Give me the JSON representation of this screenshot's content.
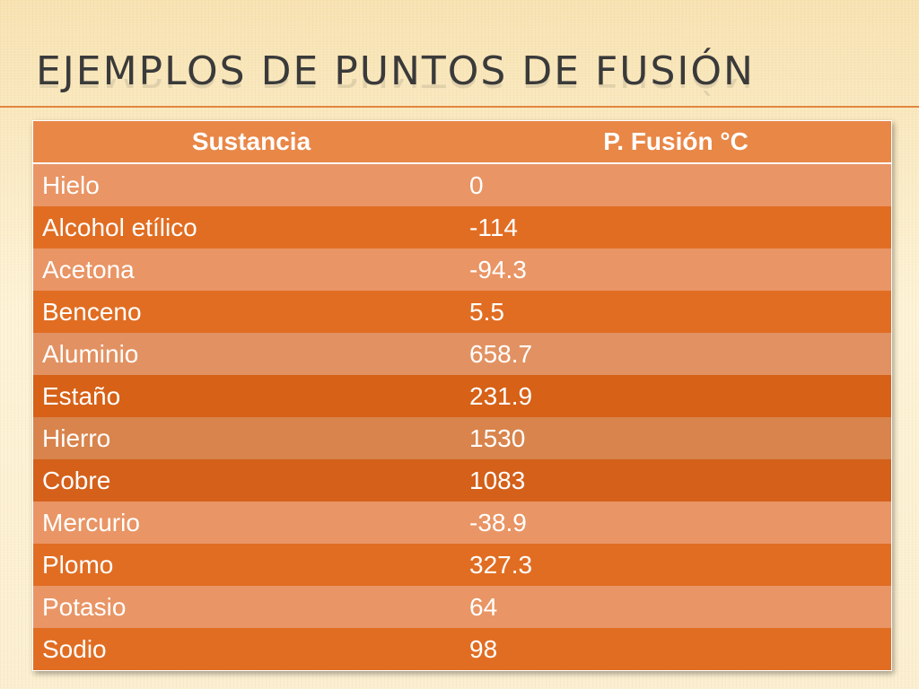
{
  "slide": {
    "title": "EJEMPLOS DE PUNTOS DE FUSIÓN"
  },
  "table": {
    "headers": [
      "Sustancia",
      "P. Fusión °C"
    ],
    "rows": [
      [
        "Hielo",
        "0"
      ],
      [
        "Alcohol etílico",
        "-114"
      ],
      [
        "Acetona",
        "-94.3"
      ],
      [
        "Benceno",
        "5.5"
      ],
      [
        "Aluminio",
        "658.7"
      ],
      [
        "Estaño",
        "231.9"
      ],
      [
        "Hierro",
        "1530"
      ],
      [
        "Cobre",
        "1083"
      ],
      [
        "Mercurio",
        "-38.9"
      ],
      [
        "Plomo",
        "327.3"
      ],
      [
        "Potasio",
        "64"
      ],
      [
        "Sodio",
        "98"
      ]
    ]
  },
  "colors": {
    "accent": "#e4863f",
    "header": "#e98747",
    "row_light": "#e99565",
    "row_dark": "#e16d22",
    "title_text": "#3a3a3a"
  }
}
